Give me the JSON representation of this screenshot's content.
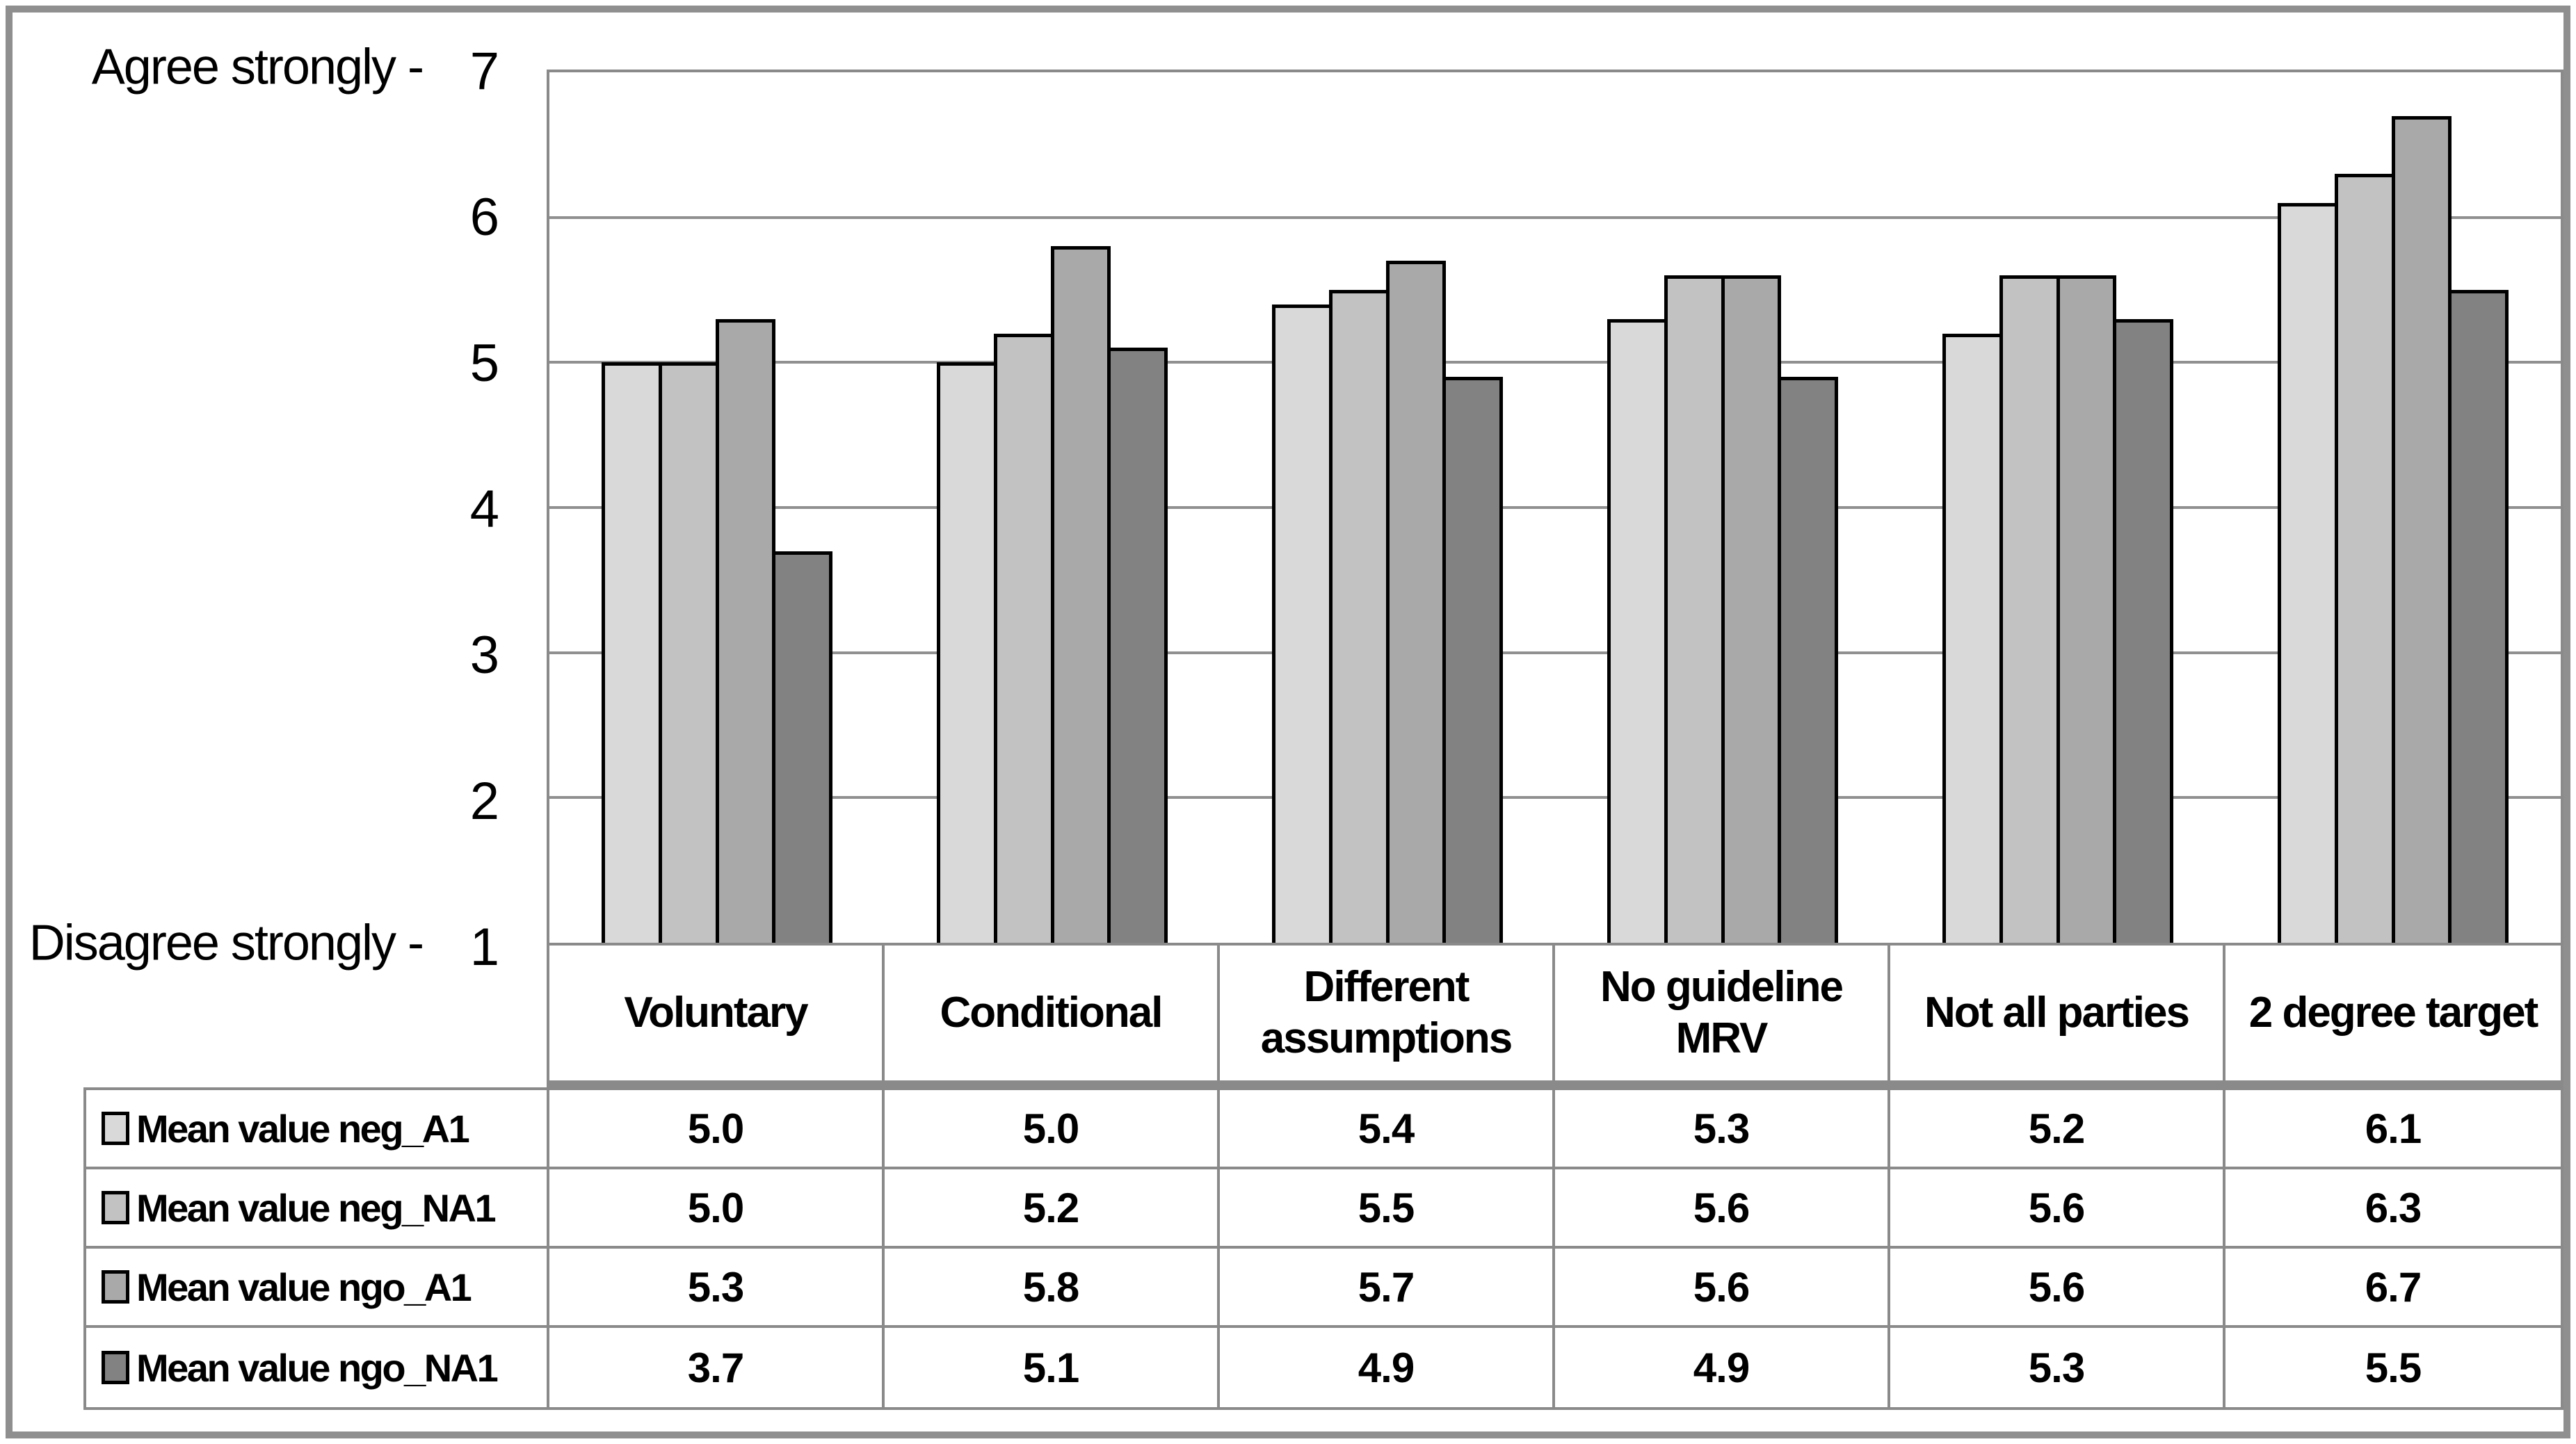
{
  "window": {
    "background": "#ffffff",
    "frame_color": "#8f8f8f",
    "grid_border_color": "#8a8a8a",
    "bar_outline_color": "#000000"
  },
  "chart_data": {
    "type": "bar",
    "title": "",
    "categories": [
      "Voluntary",
      "Conditional",
      "Different assumptions",
      "No guideline MRV",
      "Not all parties",
      "2 degree target"
    ],
    "series": [
      {
        "name": "Mean value neg_A1",
        "color": "#d9d9d9",
        "values": [
          5.0,
          5.0,
          5.4,
          5.3,
          5.2,
          6.1
        ]
      },
      {
        "name": "Mean value neg_NA1",
        "color": "#c2c2c2",
        "values": [
          5.0,
          5.2,
          5.5,
          5.6,
          5.6,
          6.3
        ]
      },
      {
        "name": "Mean value ngo_A1",
        "color": "#a9a9a9",
        "values": [
          5.3,
          5.8,
          5.7,
          5.6,
          5.6,
          6.7
        ]
      },
      {
        "name": "Mean value ngo_NA1",
        "color": "#828282",
        "values": [
          3.7,
          5.1,
          4.9,
          4.9,
          5.3,
          5.5
        ]
      }
    ],
    "y_axis": {
      "min": 1,
      "max": 7,
      "ticks": [
        7,
        6,
        5,
        4,
        3,
        2,
        1
      ],
      "top_label": "Agree strongly -",
      "bottom_label": "Disagree strongly -"
    },
    "value_format_decimals": 1,
    "grid": true,
    "legend_position": "table-left-column",
    "xlabel": "",
    "ylabel": ""
  }
}
